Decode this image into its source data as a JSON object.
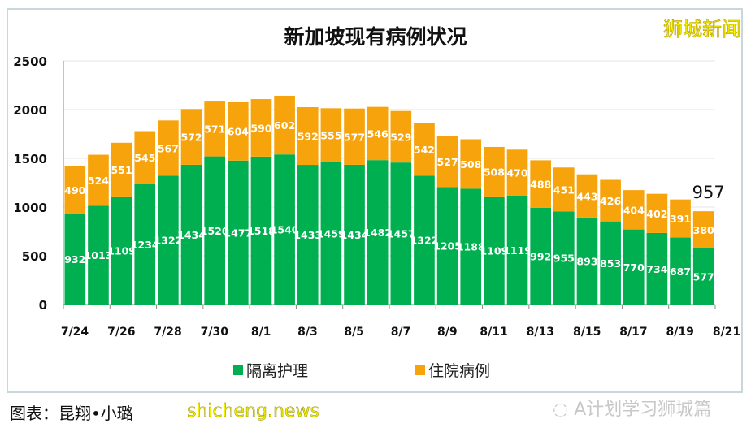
{
  "chart_data": {
    "type": "bar",
    "stacked": true,
    "title": "新加坡现有病例状况",
    "categories": [
      "7/24",
      "7/25",
      "7/26",
      "7/27",
      "7/28",
      "7/29",
      "7/30",
      "7/31",
      "8/1",
      "8/2",
      "8/3",
      "8/4",
      "8/5",
      "8/6",
      "8/7",
      "8/8",
      "8/9",
      "8/10",
      "8/11",
      "8/12",
      "8/13",
      "8/14",
      "8/15",
      "8/16",
      "8/17",
      "8/18",
      "8/19",
      "8/20"
    ],
    "x_tick_labels": [
      "7/24",
      "7/26",
      "7/28",
      "7/30",
      "8/1",
      "8/3",
      "8/5",
      "8/7",
      "8/9",
      "8/11",
      "8/13",
      "8/15",
      "8/17",
      "8/19",
      "8/21"
    ],
    "y_tick_labels": [
      "0",
      "500",
      "1000",
      "1500",
      "2000",
      "2500"
    ],
    "ylim": [
      0,
      2500
    ],
    "grid": true,
    "legend_position": "bottom",
    "series": [
      {
        "name": "隔离护理",
        "color": "#00b050",
        "values": [
          932,
          1013,
          1109,
          1234,
          1322,
          1434,
          1520,
          1477,
          1518,
          1540,
          1433,
          1459,
          1434,
          1482,
          1457,
          1322,
          1205,
          1188,
          1109,
          1119,
          992,
          955,
          893,
          853,
          770,
          734,
          687,
          577
        ]
      },
      {
        "name": "住院病例",
        "color": "#f7a30c",
        "values": [
          490,
          524,
          551,
          545,
          567,
          572,
          571,
          604,
          590,
          602,
          592,
          555,
          577,
          546,
          529,
          542,
          527,
          508,
          508,
          470,
          488,
          451,
          443,
          426,
          404,
          402,
          391,
          380
        ]
      }
    ],
    "annotation": "957"
  },
  "brand": "狮城新闻",
  "credit": "图表：昆翔•小璐",
  "watermark": "shicheng.news",
  "wechat": "A计划学习狮城篇"
}
